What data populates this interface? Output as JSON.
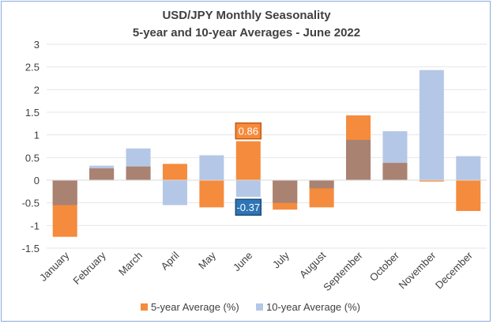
{
  "chart_data": {
    "type": "bar",
    "title": "USD/JPY Monthly Seasonality",
    "subtitle": "5-year and 10-year Averages - June 2022",
    "categories": [
      "January",
      "February",
      "March",
      "April",
      "May",
      "June",
      "July",
      "August",
      "September",
      "October",
      "November",
      "December"
    ],
    "series": [
      {
        "name": "5-year Average (%)",
        "color": "#f58b3c",
        "values": [
          -1.25,
          0.26,
          0.3,
          0.36,
          -0.6,
          0.86,
          -0.65,
          -0.6,
          1.43,
          0.38,
          -0.03,
          -0.68
        ]
      },
      {
        "name": "10-year Average (%)",
        "color": "#b4c7e7",
        "values": [
          -0.55,
          0.32,
          0.7,
          -0.55,
          0.55,
          -0.37,
          -0.5,
          -0.18,
          0.89,
          1.08,
          2.43,
          0.53
        ]
      }
    ],
    "overlap_color": "#a98272",
    "ylim": [
      -1.5,
      3
    ],
    "yticks": [
      "-1.5",
      "-1",
      "-0.5",
      "0",
      "0.5",
      "1",
      "1.5",
      "2",
      "2.5",
      "3"
    ],
    "ytick_values": [
      -1.5,
      -1,
      -0.5,
      0,
      0.5,
      1,
      1.5,
      2,
      2.5,
      3
    ],
    "callouts": [
      {
        "month": "June",
        "series": "5-year Average (%)",
        "label": "0.86",
        "value": 0.86,
        "fill": "#f58b3c",
        "border": "#c55a11",
        "text_color": "#ffffff"
      },
      {
        "month": "June",
        "series": "10-year Average (%)",
        "label": "-0.37",
        "value": -0.37,
        "fill": "#2e75b6",
        "border": "#1f4e79",
        "text_color": "#ffffff"
      }
    ],
    "legend_position": "bottom"
  }
}
